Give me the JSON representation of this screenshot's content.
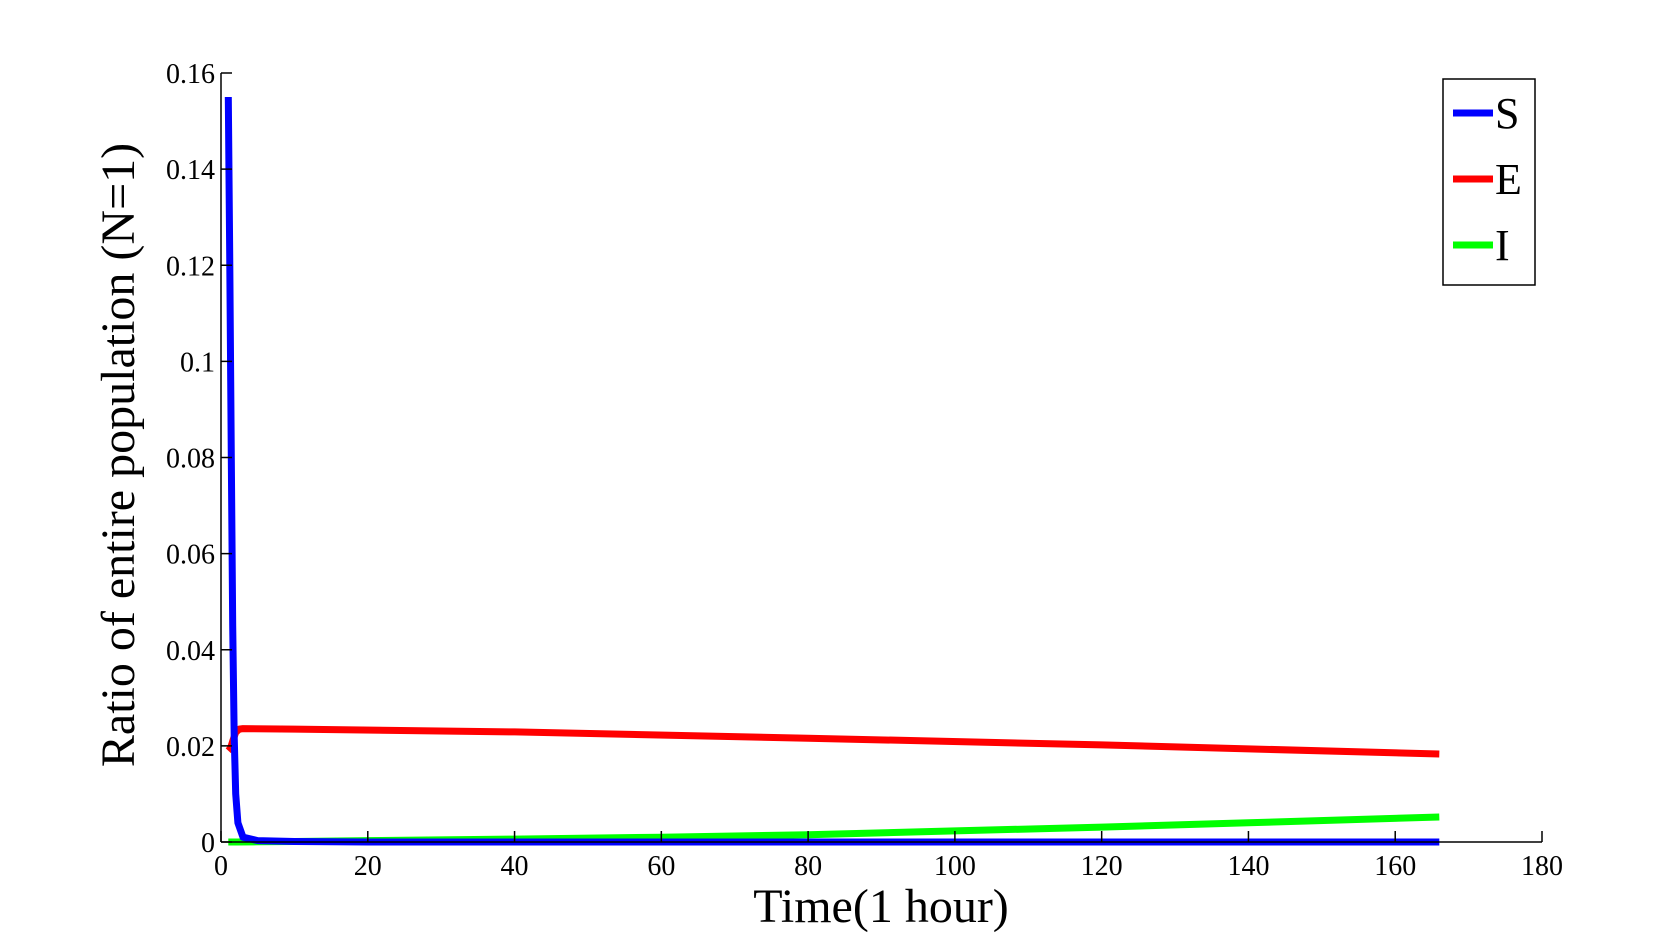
{
  "chart_data": {
    "type": "line",
    "xlabel": "Time(1 hour)",
    "ylabel": "Ratio of entire population (N=1)",
    "xlim": [
      0,
      180
    ],
    "ylim": [
      0,
      0.16
    ],
    "xticks": [
      0,
      20,
      40,
      60,
      80,
      100,
      120,
      140,
      160,
      180
    ],
    "yticks": [
      0,
      0.02,
      0.04,
      0.06,
      0.08,
      0.1,
      0.12,
      0.14,
      0.16
    ],
    "xtick_labels": [
      "0",
      "20",
      "40",
      "60",
      "80",
      "100",
      "120",
      "140",
      "160",
      "180"
    ],
    "ytick_labels": [
      "0",
      "0.02",
      "0.04",
      "0.06",
      "0.08",
      "0.1",
      "0.12",
      "0.14",
      "0.16"
    ],
    "grid": false,
    "legend_position": "top-right",
    "series": [
      {
        "name": "S",
        "color": "#0000ff",
        "x": [
          1,
          1.2,
          1.4,
          1.6,
          1.8,
          2,
          2.3,
          3,
          5,
          10,
          20,
          40,
          80,
          120,
          166
        ],
        "y": [
          0.155,
          0.12,
          0.08,
          0.045,
          0.022,
          0.01,
          0.004,
          0.001,
          0.0003,
          0.0001,
          0,
          0,
          0,
          0,
          0
        ]
      },
      {
        "name": "E",
        "color": "#ff0000",
        "x": [
          1,
          1.3,
          1.6,
          2,
          2.5,
          3,
          10,
          40,
          80,
          120,
          166
        ],
        "y": [
          0.019,
          0.0195,
          0.021,
          0.0228,
          0.0235,
          0.0236,
          0.0235,
          0.0229,
          0.0216,
          0.0202,
          0.0183
        ]
      },
      {
        "name": "I",
        "color": "#00ff00",
        "x": [
          1,
          2,
          5,
          10,
          20,
          40,
          60,
          80,
          100,
          120,
          140,
          166
        ],
        "y": [
          0,
          0,
          5e-05,
          0.0001,
          0.0003,
          0.0006,
          0.001,
          0.0015,
          0.0023,
          0.0031,
          0.004,
          0.0052
        ]
      }
    ]
  }
}
